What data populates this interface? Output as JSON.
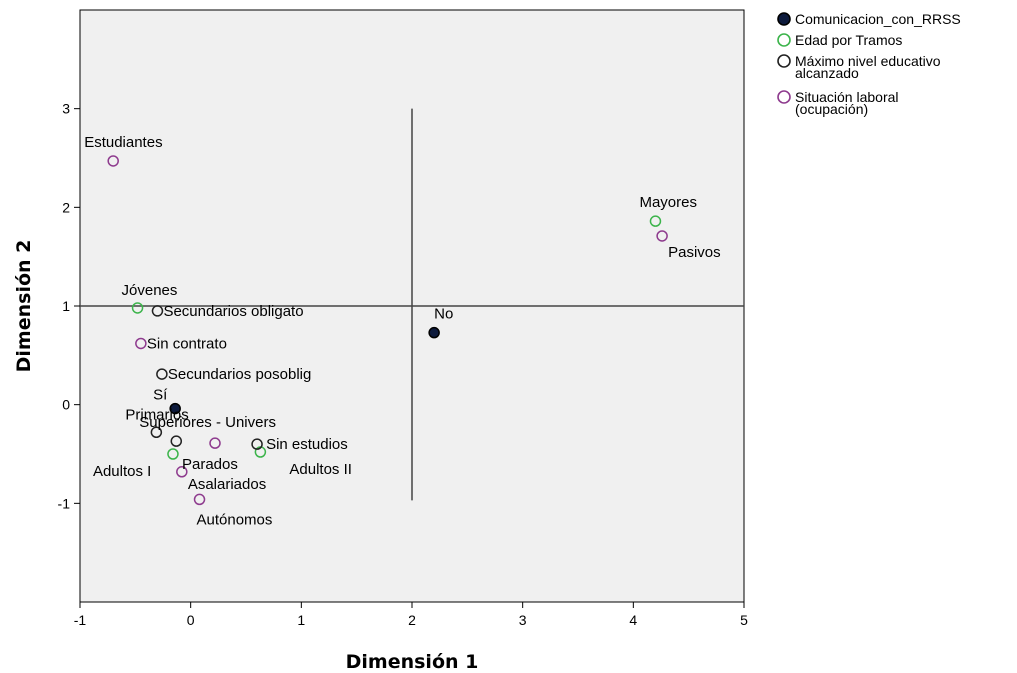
{
  "chart_data": {
    "type": "scatter",
    "title": "",
    "xlabel": "Dimensión 1",
    "ylabel": "Dimensión 2",
    "xlim": [
      -1,
      5
    ],
    "ylim": [
      -2,
      4
    ],
    "xticks": [
      "-1",
      "0",
      "1",
      "2",
      "3",
      "4",
      "5"
    ],
    "yticks": [
      "-1",
      "0",
      "1",
      "2",
      "3"
    ],
    "grid": false,
    "legend_position": "top-right",
    "reference_lines": [
      {
        "orientation": "horizontal",
        "value": 1.0
      },
      {
        "orientation": "vertical",
        "value": 2.0,
        "range": [
          -0.97,
          3.0
        ]
      }
    ],
    "series": [
      {
        "name": "Comunicacion_con_RRSS",
        "marker": "filled-circle",
        "color": "#0d1a3c",
        "points": [
          {
            "label": "No",
            "x": 2.2,
            "y": 0.73
          },
          {
            "label": "Sí",
            "x": -0.14,
            "y": -0.04
          }
        ]
      },
      {
        "name": "Edad por Tramos",
        "marker": "open-circle",
        "color": "#3cb44b",
        "points": [
          {
            "label": "Mayores",
            "x": 4.2,
            "y": 1.86
          },
          {
            "label": "Jóvenes",
            "x": -0.48,
            "y": 0.98
          },
          {
            "label": "Adultos I",
            "x": -0.16,
            "y": -0.5
          },
          {
            "label": "Adultos II",
            "x": 0.63,
            "y": -0.48
          }
        ]
      },
      {
        "name": "Máximo nivel educativo alcanzado",
        "multiline": [
          "Máximo nivel educativo",
          "alcanzado"
        ],
        "marker": "open-circle",
        "color": "#222222",
        "points": [
          {
            "label": "Secundarios obligato",
            "x": -0.3,
            "y": 0.95
          },
          {
            "label": "Secundarios posoblig",
            "x": -0.26,
            "y": 0.31
          },
          {
            "label": "Primarios",
            "x": -0.31,
            "y": -0.28
          },
          {
            "label": "Superiores - Univers",
            "x": -0.13,
            "y": -0.37
          },
          {
            "label": "Sin estudios",
            "x": 0.6,
            "y": -0.4
          }
        ]
      },
      {
        "name": "Situación laboral (ocupación)",
        "multiline": [
          "Situación laboral",
          "(ocupación)"
        ],
        "marker": "open-circle",
        "color": "#8e3b8e",
        "points": [
          {
            "label": "Estudiantes",
            "x": -0.7,
            "y": 2.47
          },
          {
            "label": "Pasivos",
            "x": 4.26,
            "y": 1.71
          },
          {
            "label": "Sin contrato",
            "x": -0.45,
            "y": 0.62
          },
          {
            "label": "Parados",
            "x": 0.22,
            "y": -0.39
          },
          {
            "label": "Asalariados",
            "x": -0.08,
            "y": -0.68
          },
          {
            "label": "Autónomos",
            "x": 0.08,
            "y": -0.96
          }
        ]
      }
    ]
  }
}
